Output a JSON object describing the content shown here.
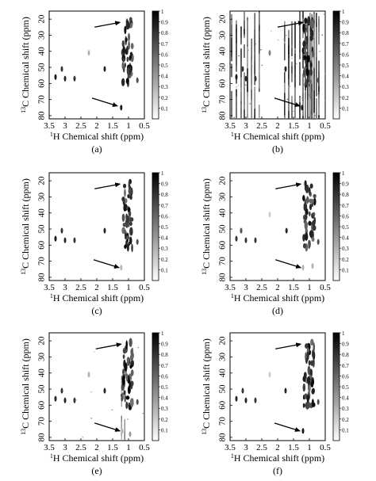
{
  "figure": {
    "colors": {
      "peak": "#000000",
      "axis": "#000000",
      "background": "#ffffff"
    },
    "arrow_icon": "arrow-icon"
  },
  "chart_data": [
    {
      "type": "heatmap",
      "panel_label": "(a)",
      "xlabel": "1H Chemical shift (ppm)",
      "ylabel": "13C Chemical shift (ppm)",
      "x_ticks": [
        3.5,
        3.0,
        2.5,
        2.0,
        1.5,
        1.0,
        0.5
      ],
      "y_ticks": [
        20,
        30,
        40,
        50,
        60,
        70,
        80
      ],
      "xlim": [
        3.5,
        0.5
      ],
      "ylim": [
        15,
        82
      ],
      "x_reversed": true,
      "y_reversed": true,
      "colorbar": {
        "ticks": [
          0.1,
          0.2,
          0.3,
          0.4,
          0.5,
          0.6,
          0.7,
          0.8,
          0.9,
          1
        ],
        "range": [
          0,
          1
        ]
      },
      "noise": "low",
      "arrows": [
        {
          "x": 1.22,
          "y": 22
        },
        {
          "x": 1.3,
          "y": 74
        }
      ],
      "peaks": [
        {
          "x": 3.3,
          "y": 56,
          "v": 0.9
        },
        {
          "x": 3.1,
          "y": 51,
          "v": 0.8
        },
        {
          "x": 3.0,
          "y": 57,
          "v": 0.85
        },
        {
          "x": 2.7,
          "y": 57,
          "v": 0.8
        },
        {
          "x": 2.25,
          "y": 41,
          "v": 0.3
        },
        {
          "x": 1.75,
          "y": 51,
          "v": 0.85
        },
        {
          "x": 1.23,
          "y": 75,
          "v": 0.9
        },
        {
          "x": 0.72,
          "y": 58,
          "v": 0.7
        }
      ],
      "cluster": {
        "x": [
          0.88,
          1.18
        ],
        "y": [
          20,
          62
        ]
      }
    },
    {
      "type": "heatmap",
      "panel_label": "(b)",
      "xlabel": "1H Chemical shift (ppm)",
      "ylabel": "13C Chemical shift (ppm)",
      "x_ticks": [
        3.5,
        3.0,
        2.5,
        2.0,
        1.5,
        1.0,
        0.5
      ],
      "y_ticks": [
        20,
        30,
        40,
        50,
        60,
        70,
        80
      ],
      "xlim": [
        3.5,
        0.5
      ],
      "ylim": [
        15,
        82
      ],
      "x_reversed": true,
      "y_reversed": true,
      "colorbar": {
        "ticks": [
          0.1,
          0.2,
          0.3,
          0.4,
          0.5,
          0.6,
          0.7,
          0.8,
          0.9,
          1
        ],
        "range": [
          0,
          1
        ]
      },
      "noise": "high",
      "arrows": [
        {
          "x": 1.15,
          "y": 22
        },
        {
          "x": 1.25,
          "y": 74
        }
      ],
      "peaks": [
        {
          "x": 3.3,
          "y": 56,
          "v": 0.9
        },
        {
          "x": 3.1,
          "y": 51,
          "v": 0.8
        },
        {
          "x": 3.0,
          "y": 57,
          "v": 0.85
        },
        {
          "x": 2.7,
          "y": 57,
          "v": 0.8
        },
        {
          "x": 2.25,
          "y": 41,
          "v": 0.5
        },
        {
          "x": 1.75,
          "y": 51,
          "v": 0.85
        },
        {
          "x": 1.23,
          "y": 75,
          "v": 0.9
        },
        {
          "x": 0.72,
          "y": 58,
          "v": 0.7
        }
      ],
      "cluster": {
        "x": [
          0.88,
          1.18
        ],
        "y": [
          20,
          62
        ]
      },
      "streaks": [
        3.45,
        3.3,
        3.15,
        3.05,
        2.95,
        2.82,
        2.72,
        2.58,
        1.78,
        1.65,
        1.55,
        1.45,
        1.3,
        1.2,
        1.12,
        1.05,
        0.98,
        0.92,
        0.85,
        0.78,
        0.7
      ]
    },
    {
      "type": "heatmap",
      "panel_label": "(c)",
      "xlabel": "1H Chemical shift (ppm)",
      "ylabel": "13C Chemical shift (ppm)",
      "x_ticks": [
        3.5,
        3.0,
        2.5,
        2.0,
        1.5,
        1.0,
        0.5
      ],
      "y_ticks": [
        20,
        30,
        40,
        50,
        60,
        70,
        80
      ],
      "xlim": [
        3.5,
        0.5
      ],
      "ylim": [
        15,
        82
      ],
      "x_reversed": true,
      "y_reversed": true,
      "colorbar": {
        "ticks": [
          0.1,
          0.2,
          0.3,
          0.4,
          0.5,
          0.6,
          0.7,
          0.8,
          0.9,
          1
        ],
        "range": [
          0,
          1
        ]
      },
      "noise": "low",
      "arrows": [
        {
          "x": 1.22,
          "y": 22
        },
        {
          "x": 1.25,
          "y": 74
        }
      ],
      "peaks": [
        {
          "x": 3.3,
          "y": 56,
          "v": 0.9
        },
        {
          "x": 3.1,
          "y": 51,
          "v": 0.8
        },
        {
          "x": 3.0,
          "y": 57,
          "v": 0.85
        },
        {
          "x": 2.7,
          "y": 57,
          "v": 0.8
        },
        {
          "x": 1.75,
          "y": 51,
          "v": 0.85
        },
        {
          "x": 1.23,
          "y": 74,
          "v": 0.3
        },
        {
          "x": 0.72,
          "y": 58,
          "v": 0.7
        }
      ],
      "cluster": {
        "x": [
          0.88,
          1.18
        ],
        "y": [
          20,
          62
        ]
      }
    },
    {
      "type": "heatmap",
      "panel_label": "(d)",
      "xlabel": "1H Chemical shift (ppm)",
      "ylabel": "13C Chemical shift (ppm)",
      "x_ticks": [
        3.5,
        3.0,
        2.5,
        2.0,
        1.5,
        1.0,
        0.5
      ],
      "y_ticks": [
        20,
        30,
        40,
        50,
        60,
        70,
        80
      ],
      "xlim": [
        3.5,
        0.5
      ],
      "ylim": [
        15,
        82
      ],
      "x_reversed": true,
      "y_reversed": true,
      "colorbar": {
        "ticks": [
          0.1,
          0.2,
          0.3,
          0.4,
          0.5,
          0.6,
          0.7,
          0.8,
          0.9,
          1
        ],
        "range": [
          0,
          1
        ]
      },
      "noise": "low",
      "arrows": [
        {
          "x": 1.22,
          "y": 22
        },
        {
          "x": 1.22,
          "y": 74
        }
      ],
      "peaks": [
        {
          "x": 3.3,
          "y": 56,
          "v": 0.8
        },
        {
          "x": 3.15,
          "y": 51,
          "v": 0.7
        },
        {
          "x": 3.0,
          "y": 57,
          "v": 0.8
        },
        {
          "x": 2.7,
          "y": 57,
          "v": 0.8
        },
        {
          "x": 2.25,
          "y": 41,
          "v": 0.2
        },
        {
          "x": 1.72,
          "y": 51,
          "v": 0.85
        },
        {
          "x": 1.2,
          "y": 74,
          "v": 0.3
        },
        {
          "x": 0.9,
          "y": 73,
          "v": 0.3
        },
        {
          "x": 0.72,
          "y": 58,
          "v": 0.7
        }
      ],
      "cluster": {
        "x": [
          0.82,
          1.18
        ],
        "y": [
          20,
          62
        ]
      }
    },
    {
      "type": "heatmap",
      "panel_label": "(e)",
      "xlabel": "1H Chemical shift (ppm)",
      "ylabel": "13C Chemical shift (ppm)",
      "x_ticks": [
        3.5,
        3.0,
        2.5,
        2.0,
        1.5,
        1.0,
        0.5
      ],
      "y_ticks": [
        20,
        30,
        40,
        50,
        60,
        70,
        80
      ],
      "xlim": [
        3.5,
        0.5
      ],
      "ylim": [
        15,
        82
      ],
      "x_reversed": true,
      "y_reversed": true,
      "colorbar": {
        "ticks": [
          0.1,
          0.2,
          0.3,
          0.4,
          0.5,
          0.6,
          0.7,
          0.8,
          0.9,
          1
        ],
        "range": [
          0,
          1
        ]
      },
      "noise": "medium",
      "arrows": [
        {
          "x": 1.18,
          "y": 22
        },
        {
          "x": 1.22,
          "y": 76
        }
      ],
      "peaks": [
        {
          "x": 3.3,
          "y": 56,
          "v": 0.85
        },
        {
          "x": 3.1,
          "y": 51,
          "v": 0.8
        },
        {
          "x": 3.0,
          "y": 57,
          "v": 0.85
        },
        {
          "x": 2.7,
          "y": 57,
          "v": 0.8
        },
        {
          "x": 2.25,
          "y": 41,
          "v": 0.3
        },
        {
          "x": 1.75,
          "y": 51,
          "v": 0.85
        },
        {
          "x": 1.2,
          "y": 76,
          "v": 0.3
        },
        {
          "x": 0.95,
          "y": 78,
          "v": 0.4
        },
        {
          "x": 0.72,
          "y": 58,
          "v": 0.7
        }
      ],
      "cluster": {
        "x": [
          0.88,
          1.22
        ],
        "y": [
          20,
          62
        ]
      },
      "streaks": [
        1.22,
        1.12
      ]
    },
    {
      "type": "heatmap",
      "panel_label": "(f)",
      "xlabel": "1H Chemical shift (ppm)",
      "ylabel": "13C Chemical shift (ppm)",
      "x_ticks": [
        3.5,
        3.0,
        2.5,
        2.0,
        1.5,
        1.0,
        0.5
      ],
      "y_ticks": [
        20,
        30,
        40,
        50,
        60,
        70,
        80
      ],
      "xlim": [
        3.5,
        0.5
      ],
      "ylim": [
        15,
        82
      ],
      "x_reversed": true,
      "y_reversed": true,
      "colorbar": {
        "ticks": [
          0.1,
          0.2,
          0.3,
          0.4,
          0.5,
          0.6,
          0.7,
          0.8,
          0.9,
          1
        ],
        "range": [
          0,
          1
        ]
      },
      "noise": "low",
      "arrows": [
        {
          "x": 1.22,
          "y": 22
        },
        {
          "x": 1.25,
          "y": 76
        }
      ],
      "peaks": [
        {
          "x": 3.3,
          "y": 56,
          "v": 0.85
        },
        {
          "x": 3.1,
          "y": 51,
          "v": 0.8
        },
        {
          "x": 3.0,
          "y": 57,
          "v": 0.85
        },
        {
          "x": 2.7,
          "y": 57,
          "v": 0.8
        },
        {
          "x": 2.25,
          "y": 41,
          "v": 0.2
        },
        {
          "x": 1.75,
          "y": 51,
          "v": 0.85
        },
        {
          "x": 1.2,
          "y": 76,
          "v": 0.9
        },
        {
          "x": 0.72,
          "y": 58,
          "v": 0.7
        }
      ],
      "cluster": {
        "x": [
          0.85,
          1.18
        ],
        "y": [
          20,
          62
        ]
      }
    }
  ]
}
